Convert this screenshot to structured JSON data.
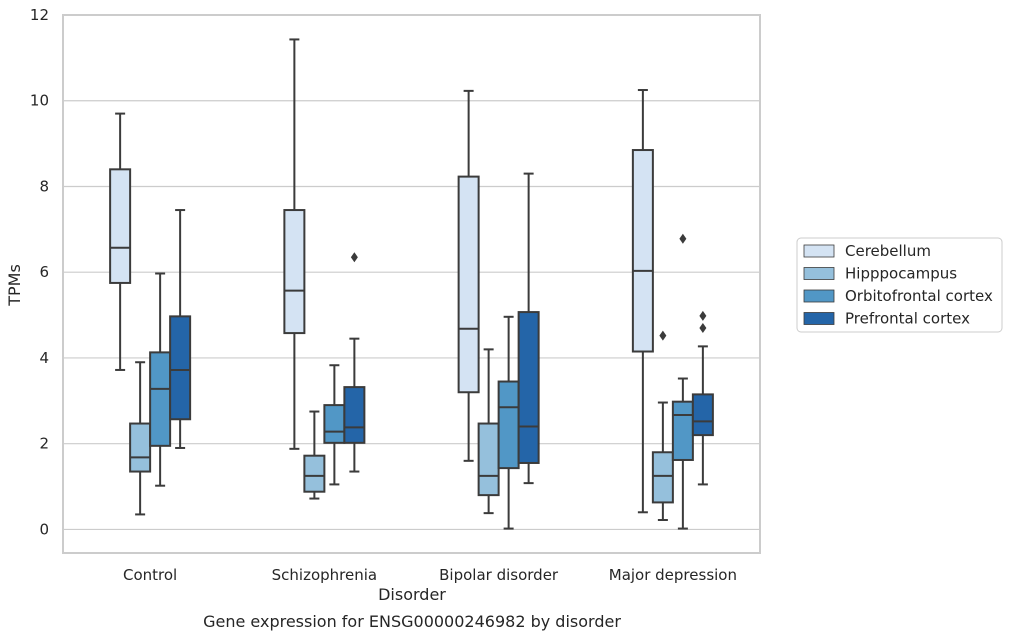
{
  "chart_data": {
    "type": "box",
    "title": "",
    "caption": "Gene expression for ENSG00000246982 by disorder",
    "xlabel": "Disorder",
    "ylabel": "TPMs",
    "ylim": [
      -0.55,
      12
    ],
    "yticks": [
      0,
      2,
      4,
      6,
      8,
      10,
      12
    ],
    "grid": "horizontal",
    "legend_position": "right",
    "categories": [
      "Control",
      "Schizophrenia",
      "Bipolar disorder",
      "Major depression"
    ],
    "series": [
      {
        "name": "Cerebellum",
        "color": "#d4e3f3",
        "boxes": [
          {
            "whisker_low": 3.72,
            "q1": 5.75,
            "median": 6.57,
            "q3": 8.4,
            "whisker_high": 9.7,
            "outliers": []
          },
          {
            "whisker_low": 1.88,
            "q1": 4.58,
            "median": 5.57,
            "q3": 7.45,
            "whisker_high": 11.43,
            "outliers": []
          },
          {
            "whisker_low": 1.6,
            "q1": 3.2,
            "median": 4.68,
            "q3": 8.23,
            "whisker_high": 10.23,
            "outliers": []
          },
          {
            "whisker_low": 0.4,
            "q1": 4.15,
            "median": 6.03,
            "q3": 8.85,
            "whisker_high": 10.25,
            "outliers": []
          }
        ]
      },
      {
        "name": "Hipppocampus",
        "color": "#95c0dc",
        "boxes": [
          {
            "whisker_low": 0.35,
            "q1": 1.35,
            "median": 1.68,
            "q3": 2.47,
            "whisker_high": 3.9,
            "outliers": []
          },
          {
            "whisker_low": 0.72,
            "q1": 0.88,
            "median": 1.25,
            "q3": 1.72,
            "whisker_high": 2.75,
            "outliers": []
          },
          {
            "whisker_low": 0.38,
            "q1": 0.8,
            "median": 1.25,
            "q3": 2.47,
            "whisker_high": 4.2,
            "outliers": []
          },
          {
            "whisker_low": 0.22,
            "q1": 0.63,
            "median": 1.25,
            "q3": 1.8,
            "whisker_high": 2.96,
            "outliers": [
              4.52
            ]
          }
        ]
      },
      {
        "name": "Orbitofrontal cortex",
        "color": "#5197c6",
        "boxes": [
          {
            "whisker_low": 1.02,
            "q1": 1.95,
            "median": 3.28,
            "q3": 4.13,
            "whisker_high": 5.97,
            "outliers": []
          },
          {
            "whisker_low": 1.05,
            "q1": 2.02,
            "median": 2.28,
            "q3": 2.9,
            "whisker_high": 3.83,
            "outliers": []
          },
          {
            "whisker_low": 0.02,
            "q1": 1.43,
            "median": 2.85,
            "q3": 3.45,
            "whisker_high": 4.96,
            "outliers": []
          },
          {
            "whisker_low": 0.02,
            "q1": 1.62,
            "median": 2.67,
            "q3": 2.98,
            "whisker_high": 3.52,
            "outliers": [
              6.78
            ]
          }
        ]
      },
      {
        "name": "Prefrontal cortex",
        "color": "#2465a8",
        "boxes": [
          {
            "whisker_low": 1.9,
            "q1": 2.57,
            "median": 3.72,
            "q3": 4.97,
            "whisker_high": 7.45,
            "outliers": []
          },
          {
            "whisker_low": 1.35,
            "q1": 2.02,
            "median": 2.38,
            "q3": 3.32,
            "whisker_high": 4.45,
            "outliers": [
              6.35
            ]
          },
          {
            "whisker_low": 1.08,
            "q1": 1.55,
            "median": 2.4,
            "q3": 5.07,
            "whisker_high": 8.3,
            "outliers": []
          },
          {
            "whisker_low": 1.05,
            "q1": 2.2,
            "median": 2.52,
            "q3": 3.15,
            "whisker_high": 4.27,
            "outliers": [
              4.7,
              4.98
            ]
          }
        ]
      }
    ]
  }
}
